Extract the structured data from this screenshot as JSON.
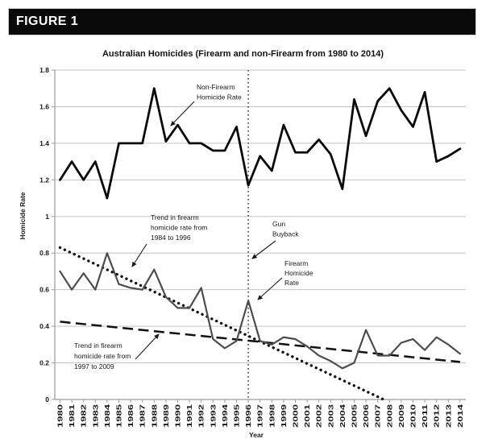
{
  "figure_label": "FIGURE 1",
  "colors": {
    "banner_bg": "#0a0a0a",
    "banner_text": "#ffffff",
    "non_firearm_line": "#0a0a0a",
    "firearm_line": "#4d4d4d",
    "trend_line": "#111111",
    "grid_line": "#c4c4c4",
    "axis_line": "#9a9a9a",
    "text": "#1a1a1a"
  },
  "chart_data": {
    "type": "line",
    "title": "Australian Homicides (Firearm and non-Firearm from 1980 to 2014)",
    "xlabel": "Year",
    "ylabel": "Homicide Rate",
    "ylim": [
      0,
      1.8
    ],
    "grid": true,
    "legend_position": "none",
    "yticks": [
      "0",
      "0.2",
      "0.4",
      "0.6",
      "0.8",
      "1",
      "1.2",
      "1.4",
      "1.6",
      "1.8"
    ],
    "x_years": [
      1980,
      1981,
      1982,
      1983,
      1984,
      1985,
      1986,
      1987,
      1988,
      1989,
      1990,
      1991,
      1992,
      1993,
      1994,
      1995,
      1996,
      1997,
      1998,
      1999,
      2000,
      2001,
      2002,
      2003,
      2004,
      2005,
      2006,
      2007,
      2008,
      2009,
      2010,
      2011,
      2012,
      2013,
      2014
    ],
    "series": [
      {
        "name": "Non-Firearm Homicide Rate",
        "style": "solid-thick",
        "values": [
          1.2,
          1.3,
          1.2,
          1.3,
          1.1,
          1.4,
          1.4,
          1.4,
          1.7,
          1.41,
          1.5,
          1.4,
          1.4,
          1.36,
          1.36,
          1.49,
          1.17,
          1.33,
          1.25,
          1.5,
          1.35,
          1.35,
          1.42,
          1.34,
          1.15,
          1.64,
          1.44,
          1.63,
          1.7,
          1.58,
          1.49,
          1.68,
          1.3,
          1.33,
          1.37
        ]
      },
      {
        "name": "Firearm Homicide Rate",
        "style": "solid-medium",
        "values": [
          0.7,
          0.6,
          0.69,
          0.6,
          0.8,
          0.63,
          0.61,
          0.6,
          0.71,
          0.56,
          0.5,
          0.5,
          0.61,
          0.33,
          0.28,
          0.32,
          0.54,
          0.32,
          0.3,
          0.34,
          0.33,
          0.29,
          0.24,
          0.21,
          0.17,
          0.2,
          0.38,
          0.24,
          0.24,
          0.31,
          0.33,
          0.27,
          0.34,
          0.3,
          0.25
        ]
      }
    ],
    "trend_lines": [
      {
        "id": "trend-1984-1996",
        "name": "Trend in firearm homicide rate from 1984 to 1996",
        "style": "dotted",
        "from": {
          "year": 1980,
          "value": 0.83
        },
        "to": {
          "year": 2007.5,
          "value": 0.0
        }
      },
      {
        "id": "trend-1997-2009",
        "name": "Trend in firearm homicide rate from 1997 to 2009",
        "style": "dashed",
        "from": {
          "year": 1980,
          "value": 0.425
        },
        "to": {
          "year": 2014,
          "value": 0.205
        }
      }
    ],
    "event_line": {
      "label": "Gun Buyback",
      "year": 1996,
      "style": "dotted-vertical"
    },
    "annotations": [
      {
        "id": "non-firearm-label",
        "lines": [
          "Non-Firearm",
          "Homicide Rate"
        ],
        "target": "non-firearm series"
      },
      {
        "id": "trend-1984-1996-label",
        "lines": [
          "Trend in firearm",
          "homicide rate from",
          "1984 to 1996"
        ],
        "target": "dotted trend line"
      },
      {
        "id": "gun-buyback-label",
        "lines": [
          "Gun",
          "Buyback"
        ],
        "target": "vertical event line"
      },
      {
        "id": "firearm-label",
        "lines": [
          "Firearm",
          "Homicide",
          "Rate"
        ],
        "target": "firearm series 1996 spike"
      },
      {
        "id": "trend-1997-2009-label",
        "lines": [
          "Trend in firearm",
          "homicide rate from",
          "1997 to 2009"
        ],
        "target": "dashed trend line"
      }
    ]
  }
}
